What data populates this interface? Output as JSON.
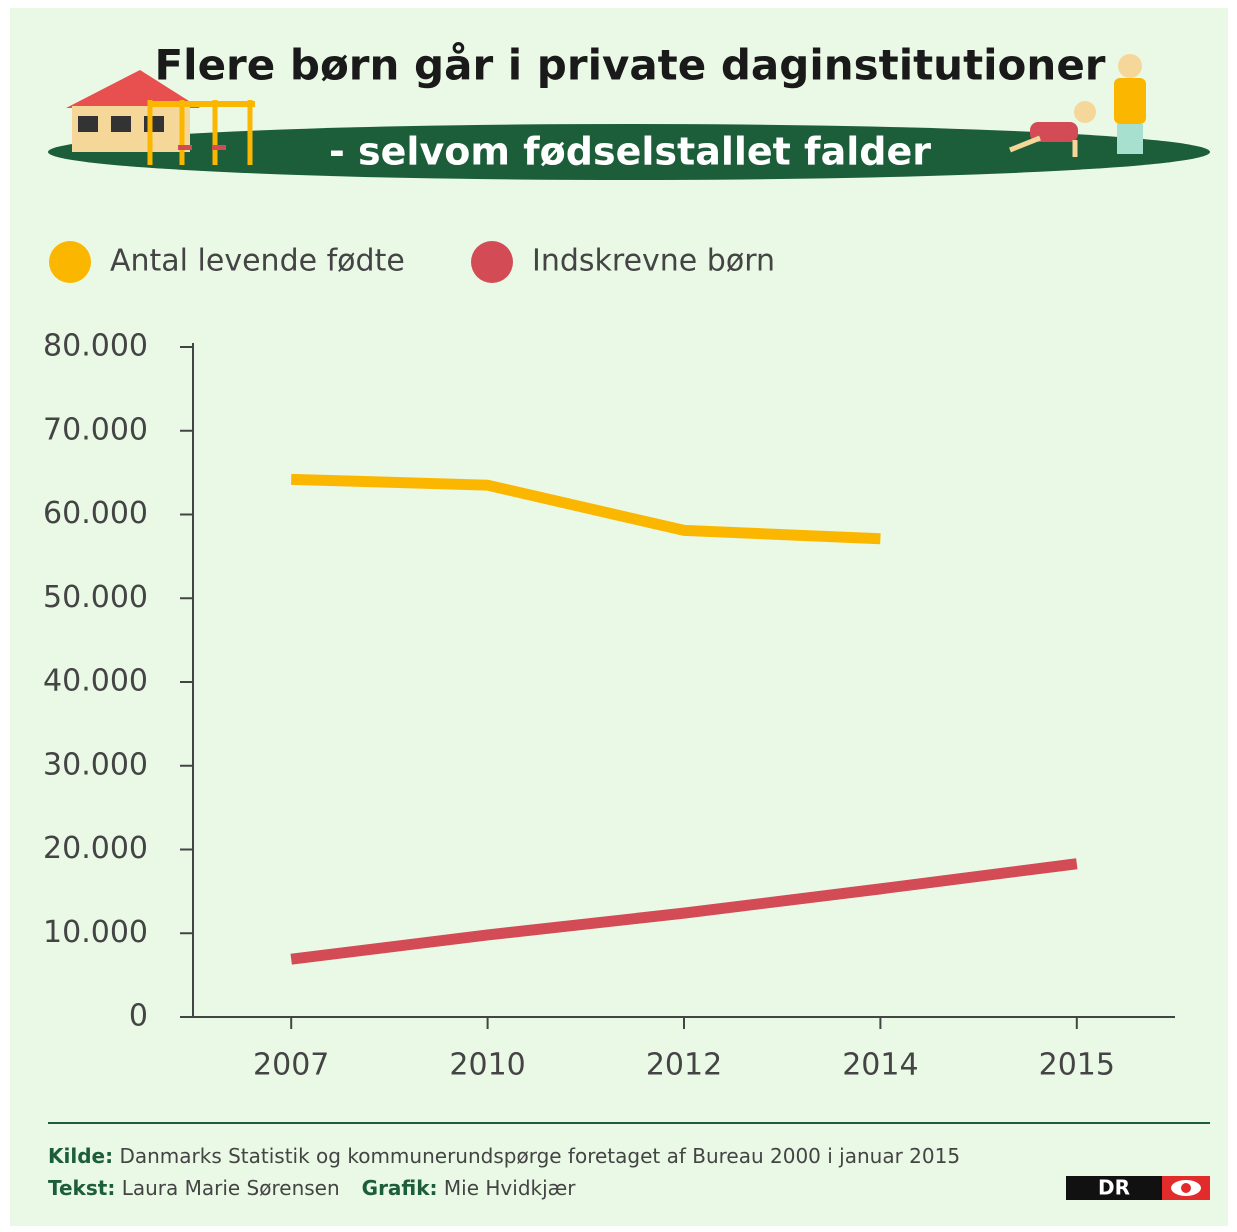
{
  "chart_data": {
    "type": "line",
    "title": "Flere børn går i private daginstitutioner",
    "subtitle": "- selvom fødselstallet falder",
    "categories": [
      "2007",
      "2010",
      "2012",
      "2014",
      "2015"
    ],
    "series": [
      {
        "name": "Antal levende fødte",
        "color": "#fbb700",
        "values": [
          64200,
          63500,
          58100,
          57100,
          null
        ]
      },
      {
        "name": "Indskrevne børn",
        "color": "#d24b55",
        "values": [
          6900,
          9800,
          12400,
          15300,
          18300
        ]
      }
    ],
    "ylim": [
      0,
      80000
    ],
    "yticks": [
      0,
      {
        "value": 10000,
        "label": "10.000"
      },
      {
        "value": 20000,
        "label": "20.000"
      },
      {
        "value": 30000,
        "label": "30.000"
      },
      {
        "value": 40000,
        "label": "40.000"
      },
      {
        "value": 50000,
        "label": "50.000"
      },
      {
        "value": 60000,
        "label": "60.000"
      },
      {
        "value": 70000,
        "label": "70.000"
      },
      {
        "value": 80000,
        "label": "80.000"
      }
    ],
    "grid": false,
    "legend": "top"
  },
  "footer": {
    "source_label": "Kilde:",
    "source_text": "Danmarks Statistik og kommunerundspørge foretaget af Bureau 2000 i januar 2015",
    "text_label": "Tekst:",
    "text_author": "Laura Marie Sørensen",
    "graphic_label": "Grafik:",
    "graphic_author": "Mie Hvidkjær"
  },
  "logo": {
    "text": "DR"
  }
}
